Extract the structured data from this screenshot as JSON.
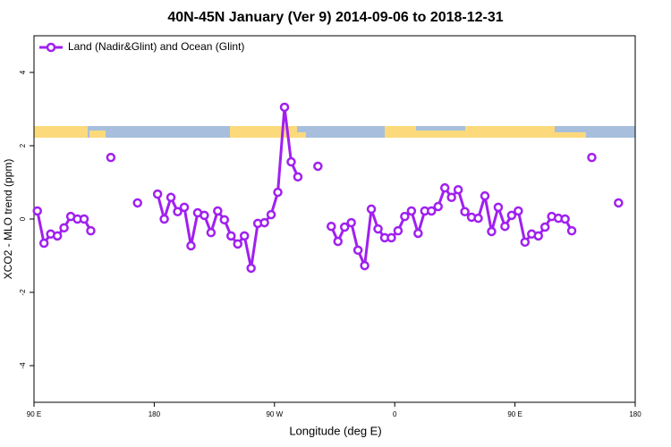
{
  "chart_data": {
    "type": "line",
    "title": "40N-45N January (Ver 9)   2014-09-06 to 2018-12-31",
    "xlabel": "Longitude (deg E)",
    "ylabel": "XCO2 - MLO trend (ppm)",
    "x": [
      92.5,
      97.5,
      102.5,
      107.5,
      112.5,
      117.5,
      122.5,
      127.5,
      132.5,
      137.5,
      147.5,
      152.5,
      167.5,
      172.5,
      182.5,
      187.5,
      192.5,
      197.5,
      202.5,
      207.5,
      212.5,
      217.5,
      222.5,
      227.5,
      232.5,
      237.5,
      242.5,
      247.5,
      252.5,
      257.5,
      262.5,
      267.5,
      272.5,
      277.5,
      282.5,
      287.5,
      292.5,
      302.5,
      307.5,
      312.5,
      317.5,
      322.5,
      327.5,
      332.5,
      337.5,
      342.5,
      347.5,
      352.5,
      357.5,
      362.5,
      367.5,
      372.5,
      377.5,
      382.5,
      387.5,
      392.5,
      397.5,
      402.5,
      407.5,
      412.5,
      417.5,
      422.5,
      427.5,
      432.5,
      437.5,
      442.5,
      447.5,
      452.5,
      457.5,
      462.5,
      467.5,
      472.5,
      477.5,
      482.5,
      487.5,
      492.5,
      497.5,
      507.5,
      517.5,
      527.5
    ],
    "series": [
      {
        "name": "Land (Nadir&Glint) and Ocean (Glint)",
        "color": "#a020f0",
        "values": [
          0.22,
          -0.66,
          -0.41,
          -0.46,
          -0.24,
          0.07,
          0,
          0,
          -0.32,
          null,
          1.68,
          null,
          0.44,
          null,
          0.68,
          0,
          0.59,
          0.2,
          0.32,
          -0.73,
          0.17,
          0.1,
          -0.37,
          0.22,
          -0.02,
          -0.46,
          -0.68,
          -0.46,
          -1.34,
          -0.12,
          -0.1,
          0.12,
          0.73,
          3.05,
          1.56,
          1.15,
          null,
          1.44,
          null,
          -0.2,
          -0.61,
          -0.22,
          -0.1,
          -0.85,
          -1.27,
          0.27,
          -0.27,
          -0.51,
          -0.51,
          -0.32,
          0.07,
          0.22,
          -0.39,
          0.22,
          0.22,
          0.34,
          0.85,
          0.59,
          0.8,
          0.2,
          0.05,
          0.02,
          0.63,
          -0.34,
          0.32,
          -0.2,
          0.1,
          0.22,
          -0.63,
          -0.41,
          -0.46,
          -0.22,
          0.07,
          0.02,
          0,
          -0.32,
          null,
          1.68,
          null,
          0.44
        ]
      }
    ],
    "xlim": [
      90,
      540
    ],
    "xticks": [
      {
        "value": 90,
        "label": "90 E"
      },
      180,
      {
        "value": 270,
        "label": "90 W"
      },
      {
        "value": 360,
        "label": "0"
      },
      {
        "value": 450,
        "label": "90 E"
      },
      {
        "value": 540,
        "label": "180"
      }
    ],
    "ylim": [
      -5,
      5
    ],
    "yticks": [
      -4,
      -2,
      0,
      2,
      4
    ],
    "legend": "top-left"
  }
}
